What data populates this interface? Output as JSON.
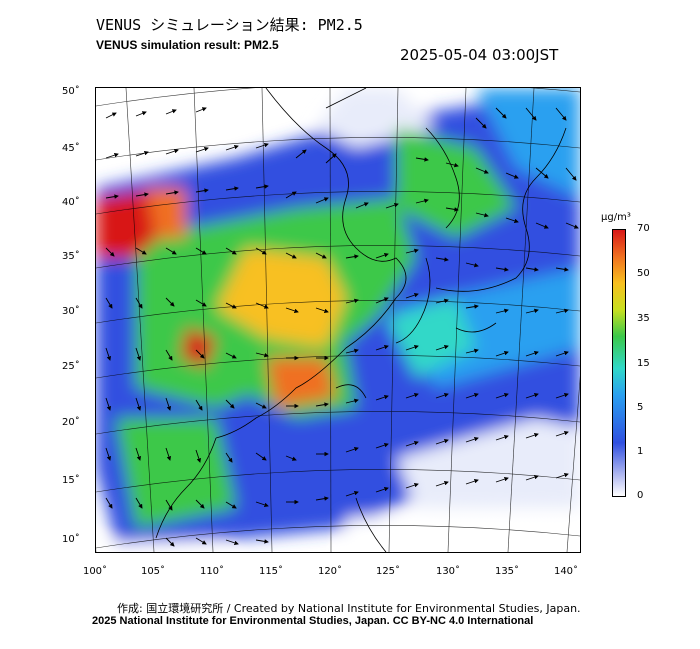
{
  "title_jp": "VENUS シミュレーション結果: PM2.5",
  "title_en": "VENUS simulation result: PM2.5",
  "timestamp": "2025-05-04 03:00JST",
  "axes": {
    "lat_labels": [
      "50˚",
      "45˚",
      "40˚",
      "35˚",
      "30˚",
      "25˚",
      "20˚",
      "15˚",
      "10˚"
    ],
    "lon_labels": [
      "100˚",
      "105˚",
      "110˚",
      "115˚",
      "120˚",
      "125˚",
      "130˚",
      "135˚",
      "140˚"
    ]
  },
  "colorbar": {
    "unit": "μg/m³",
    "ticks": [
      "70",
      "50",
      "35",
      "15",
      "5",
      "1",
      "0"
    ]
  },
  "credit_jp": "作成: 国立環境研究所 / Created by National Institute for Environmental Studies, Japan.",
  "credit_en": "2025 National Institute for Environmental Studies, Japan. CC BY-NC 4.0 International",
  "colors": {
    "high": "#d81818",
    "mid": "#f8c020",
    "green": "#3cc84a",
    "cyan": "#30d8c8",
    "blue": "#3050e0",
    "low": "#b0b8f0"
  }
}
